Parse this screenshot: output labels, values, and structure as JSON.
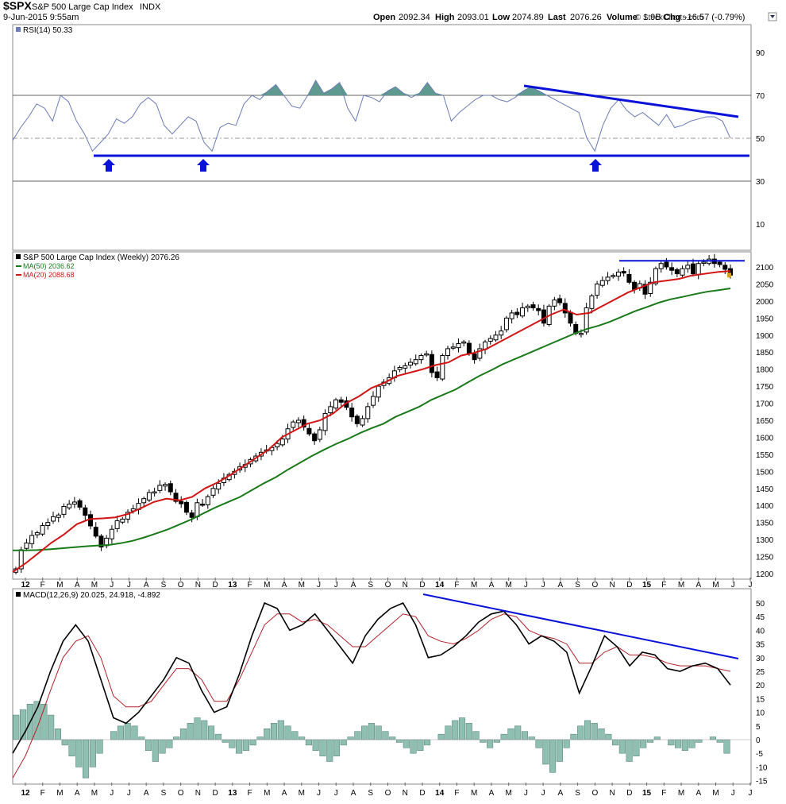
{
  "header": {
    "symbol": "$SPX",
    "name": "S&P 500 Large Cap Index",
    "exchange": "INDX",
    "date": "9-Jun-2015 9:55am",
    "copyright": "© StockCharts.com",
    "open_label": "Open",
    "open_value": "2092.34",
    "high_label": "High",
    "high_value": "2093.01",
    "low_label": "Low",
    "low_value": "2074.89",
    "last_label": "Last",
    "last_value": "2076.26",
    "volume_label": "Volume",
    "volume_value": "1.9B",
    "chg_label": "Chg",
    "chg_value": "-16.57 (-0.79%)"
  },
  "colors": {
    "rsi_line": "#6b7bb5",
    "rsi_fill": "#5f9a90",
    "trend_blue": "#0a12d8",
    "ma50": "#1a7a1a",
    "ma20": "#d21414",
    "macd_line": "#000000",
    "signal_line": "#b0202a",
    "histogram": "#8fbfb0",
    "candle": "#000000"
  },
  "chart_data": [
    {
      "type": "line",
      "panel": "rsi",
      "label": "RSI(14) 50.33",
      "yticks": [
        90,
        70,
        50,
        30,
        10
      ],
      "ylim": [
        0,
        100
      ],
      "lines": [
        70,
        50,
        30
      ],
      "series": [
        {
          "name": "RSI(14)",
          "values": [
            49,
            55,
            60,
            66,
            64,
            58,
            70,
            67,
            58,
            52,
            44,
            48,
            52,
            59,
            57,
            60,
            66,
            69,
            66,
            56,
            52,
            56,
            60,
            58,
            48,
            44,
            55,
            57,
            56,
            66,
            70,
            68,
            72,
            75,
            70,
            65,
            64,
            70,
            77,
            71,
            73,
            76,
            64,
            58,
            70,
            69,
            67,
            72,
            74,
            71,
            69,
            71,
            76,
            71,
            70,
            58,
            62,
            65,
            68,
            70,
            70,
            68,
            67,
            69,
            72,
            74,
            72,
            70,
            68,
            66,
            64,
            62,
            50,
            44,
            56,
            64,
            68,
            63,
            60,
            62,
            59,
            56,
            61,
            55,
            56,
            58,
            59,
            60,
            60,
            58,
            50
          ]
        }
      ],
      "markers": [
        "up-arrow",
        "up-arrow",
        "up-arrow"
      ]
    },
    {
      "type": "candlestick",
      "panel": "price",
      "title": "S&P 500 Large Cap Index (Weekly) 2076.26",
      "yticks": [
        2100,
        2050,
        2000,
        1950,
        1900,
        1850,
        1800,
        1750,
        1700,
        1650,
        1600,
        1550,
        1500,
        1450,
        1400,
        1350,
        1300,
        1250,
        1200
      ],
      "ylim": [
        1190,
        2145
      ],
      "xticks": [
        "12",
        "F",
        "M",
        "A",
        "M",
        "J",
        "J",
        "A",
        "S",
        "O",
        "N",
        "D",
        "13",
        "F",
        "M",
        "A",
        "M",
        "J",
        "J",
        "A",
        "S",
        "O",
        "N",
        "D",
        "14",
        "F",
        "M",
        "A",
        "M",
        "J",
        "J",
        "A",
        "S",
        "O",
        "N",
        "D",
        "15",
        "F",
        "M",
        "A",
        "M",
        "J",
        "J"
      ],
      "close": [
        1214,
        1270,
        1290,
        1312,
        1320,
        1341,
        1350,
        1367,
        1372,
        1397,
        1404,
        1410,
        1395,
        1371,
        1340,
        1310,
        1278,
        1304,
        1330,
        1355,
        1360,
        1380,
        1390,
        1406,
        1420,
        1438,
        1440,
        1459,
        1462,
        1440,
        1412,
        1405,
        1380,
        1365,
        1408,
        1402,
        1426,
        1450,
        1465,
        1480,
        1491,
        1500,
        1514,
        1520,
        1535,
        1545,
        1556,
        1563,
        1570,
        1582,
        1595,
        1625,
        1645,
        1650,
        1630,
        1610,
        1590,
        1622,
        1670,
        1690,
        1710,
        1703,
        1688,
        1660,
        1640,
        1655,
        1690,
        1720,
        1750,
        1762,
        1775,
        1795,
        1805,
        1810,
        1820,
        1828,
        1840,
        1845,
        1790,
        1775,
        1840,
        1860,
        1865,
        1875,
        1880,
        1845,
        1828,
        1860,
        1880,
        1890,
        1900,
        1912,
        1950,
        1965,
        1960,
        1980,
        1985,
        1980,
        1972,
        1935,
        1985,
        2003,
        1995,
        1965,
        1935,
        1905,
        1905,
        1980,
        2015,
        2050,
        2060,
        2070,
        2075,
        2085,
        2082,
        2055,
        2034,
        2051,
        2020,
        2055,
        2095,
        2110,
        2100,
        2090,
        2080,
        2095,
        2105,
        2080,
        2110,
        2114,
        2123,
        2110,
        2107,
        2093,
        2076
      ],
      "series": [
        {
          "name": "MA(50) 2036.62",
          "values": [
            1268,
            1268,
            1269,
            1271,
            1274,
            1277,
            1280,
            1282,
            1284,
            1289,
            1296,
            1306,
            1318,
            1330,
            1345,
            1360,
            1378,
            1395,
            1410,
            1425,
            1445,
            1465,
            1483,
            1505,
            1525,
            1545,
            1563,
            1580,
            1595,
            1612,
            1627,
            1640,
            1660,
            1675,
            1690,
            1710,
            1725,
            1740,
            1760,
            1780,
            1797,
            1815,
            1830,
            1845,
            1860,
            1875,
            1890,
            1905,
            1918,
            1928,
            1940,
            1955,
            1970,
            1982,
            1995,
            2005,
            2012,
            2020,
            2027,
            2032,
            2037
          ]
        },
        {
          "name": "MA(20) 2088.68",
          "values": [
            1205,
            1230,
            1260,
            1290,
            1315,
            1345,
            1360,
            1362,
            1365,
            1375,
            1392,
            1410,
            1420,
            1415,
            1425,
            1450,
            1468,
            1490,
            1515,
            1540,
            1565,
            1600,
            1620,
            1640,
            1650,
            1670,
            1700,
            1720,
            1745,
            1760,
            1780,
            1790,
            1800,
            1812,
            1820,
            1840,
            1848,
            1860,
            1880,
            1900,
            1920,
            1940,
            1960,
            1975,
            1960,
            1965,
            1985,
            2005,
            2025,
            2040,
            2055,
            2060,
            2065,
            2075,
            2080,
            2085,
            2088
          ]
        }
      ],
      "resistance": [
        2118
      ]
    },
    {
      "type": "line",
      "panel": "macd",
      "label": "MACD(12,26,9) 20.025, 24.918, -4.892",
      "yticks": [
        50,
        45,
        40,
        35,
        30,
        25,
        20,
        15,
        10,
        5,
        0,
        -5,
        -10,
        -15
      ],
      "ylim": [
        -16,
        53
      ],
      "series": [
        {
          "name": "MACD(12,26,9)",
          "values": [
            -5,
            3,
            12,
            25,
            36,
            42,
            36,
            22,
            8,
            6,
            10,
            16,
            22,
            30,
            28,
            18,
            10,
            12,
            24,
            38,
            50,
            48,
            40,
            42,
            46,
            40,
            34,
            28,
            38,
            44,
            48,
            50,
            42,
            30,
            31,
            34,
            38,
            43,
            46,
            47,
            42,
            35,
            38,
            36,
            32,
            17,
            27,
            38,
            34,
            27,
            32,
            31,
            26,
            25,
            27,
            28,
            26,
            20
          ]
        },
        {
          "name": "Signal",
          "values": [
            -14,
            -6,
            5,
            18,
            30,
            36,
            38,
            30,
            16,
            12,
            12,
            14,
            20,
            26,
            26,
            22,
            14,
            14,
            22,
            32,
            42,
            46,
            46,
            43,
            44,
            42,
            38,
            34,
            34,
            38,
            42,
            46,
            45,
            38,
            36,
            35,
            37,
            40,
            44,
            46,
            45,
            40,
            38,
            37,
            35,
            28,
            28,
            32,
            34,
            31,
            31,
            30,
            28,
            27,
            27,
            27,
            26,
            25
          ]
        },
        {
          "name": "Histogram",
          "values": [
            9,
            11,
            13,
            14,
            13,
            9,
            4,
            -2,
            -6,
            -10,
            -14,
            -10,
            -5,
            0,
            3,
            5,
            6,
            5,
            1,
            -4,
            -8,
            -5,
            -3,
            1,
            4,
            6,
            8,
            7,
            5,
            2,
            -1,
            -3,
            -5,
            -4,
            -2,
            1,
            4,
            6,
            7,
            5,
            3,
            1,
            -2,
            -4,
            -6,
            -8,
            -6,
            -2,
            1,
            3,
            5,
            6,
            5,
            3,
            1,
            -1,
            -3,
            -5,
            -4,
            -2,
            0,
            2,
            5,
            7,
            8,
            6,
            3,
            -1,
            -3,
            -1,
            2,
            4,
            5,
            3,
            1,
            -3,
            -9,
            -12,
            -8,
            -3,
            2,
            5,
            7,
            6,
            4,
            2,
            -2,
            -5,
            -8,
            -6,
            -3,
            -1,
            1,
            0,
            -2,
            -3,
            -4,
            -3,
            -1,
            0,
            1,
            -1,
            -5
          ]
        }
      ]
    }
  ],
  "axis_labels": {
    "price_xticks": [
      "12",
      "F",
      "M",
      "A",
      "M",
      "J",
      "J",
      "A",
      "S",
      "O",
      "N",
      "D",
      "13",
      "F",
      "M",
      "A",
      "M",
      "J",
      "J",
      "A",
      "S",
      "O",
      "N",
      "D",
      "14",
      "F",
      "M",
      "A",
      "M",
      "J",
      "J",
      "A",
      "S",
      "O",
      "N",
      "D",
      "15",
      "F",
      "M",
      "A",
      "M",
      "J",
      "J"
    ],
    "macd_xticks": [
      "12",
      "F",
      "M",
      "A",
      "M",
      "J",
      "J",
      "A",
      "S",
      "O",
      "N",
      "D",
      "13",
      "F",
      "M",
      "A",
      "M",
      "J",
      "J",
      "A",
      "S",
      "O",
      "N",
      "D",
      "14",
      "F",
      "M",
      "A",
      "M",
      "J",
      "J",
      "A",
      "S",
      "O",
      "N",
      "D",
      "15",
      "F",
      "M",
      "A",
      "M",
      "J",
      "J"
    ]
  }
}
